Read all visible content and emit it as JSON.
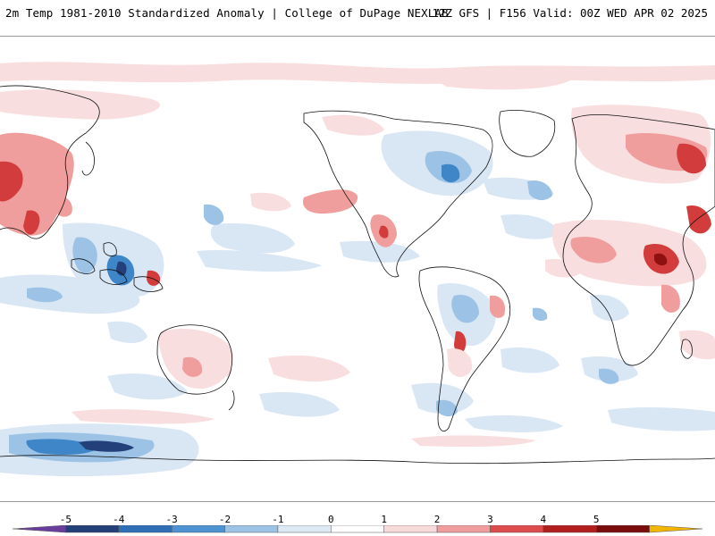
{
  "header": {
    "title_left": "2m Temp 1981-2010 Standardized Anomaly | College of DuPage NEXLAB",
    "title_right": "12Z GFS | F156 Valid: 00Z WED APR 02 2025"
  },
  "colorbar": {
    "ticks": [
      "-5",
      "-4",
      "-3",
      "-2",
      "-1",
      "0",
      "1",
      "2",
      "3",
      "4",
      "5"
    ],
    "colors": [
      "#6a3d9a",
      "#23407a",
      "#2f6fb8",
      "#4d93d2",
      "#9cc3e6",
      "#dde9f5",
      "#ffffff",
      "#f7dada",
      "#ef9d9d",
      "#dc4c4c",
      "#b21e1e",
      "#7a0c0c",
      "#f2b500"
    ]
  },
  "map": {
    "colors": {
      "ocean": "#ffffff",
      "coast": "#111111",
      "cold_light": "#d9e6f4",
      "cold_mid": "#9cc3e6",
      "cold_strong": "#3f86c9",
      "cold_deep": "#23407a",
      "warm_light": "#f8dede",
      "warm_mid": "#ef9d9d",
      "warm_strong": "#d23c3c",
      "warm_deep": "#8e1010"
    }
  }
}
